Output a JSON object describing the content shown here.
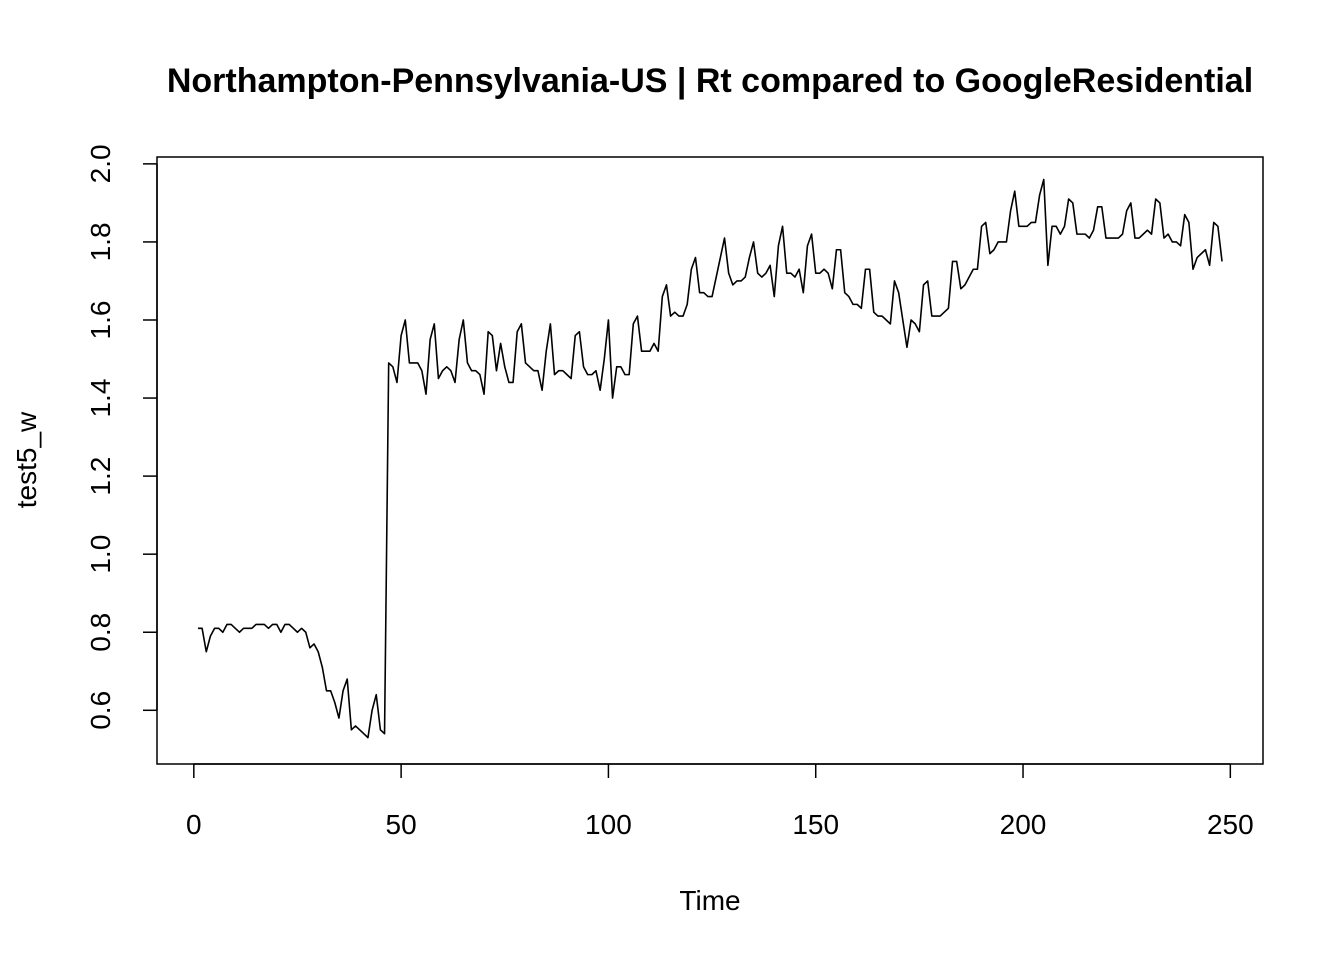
{
  "chart_data": {
    "type": "line",
    "title": "Northampton-Pennsylvania-US | Rt compared to GoogleResidential",
    "xlabel": "Time",
    "ylabel": "test5_w",
    "xlim": [
      1,
      248
    ],
    "ylim": [
      0.52,
      1.96
    ],
    "xticks": [
      0,
      50,
      100,
      150,
      200,
      250
    ],
    "xtick_labels": [
      "0",
      "50",
      "100",
      "150",
      "200",
      "250"
    ],
    "yticks": [
      0.6,
      0.8,
      1.0,
      1.2,
      1.4,
      1.6,
      1.8,
      2.0
    ],
    "ytick_labels": [
      "0.6",
      "0.8",
      "1.0",
      "1.2",
      "1.4",
      "1.6",
      "1.8",
      "2.0"
    ],
    "grid": false,
    "series": [
      {
        "color": "#000000",
        "x_start": 1,
        "values": [
          0.81,
          0.81,
          0.75,
          0.79,
          0.81,
          0.81,
          0.8,
          0.82,
          0.82,
          0.81,
          0.8,
          0.81,
          0.81,
          0.81,
          0.82,
          0.82,
          0.82,
          0.81,
          0.82,
          0.82,
          0.8,
          0.82,
          0.82,
          0.81,
          0.8,
          0.81,
          0.8,
          0.76,
          0.77,
          0.75,
          0.71,
          0.65,
          0.65,
          0.62,
          0.58,
          0.65,
          0.68,
          0.55,
          0.56,
          0.55,
          0.54,
          0.53,
          0.6,
          0.64,
          0.55,
          0.54,
          1.49,
          1.48,
          1.44,
          1.56,
          1.6,
          1.49,
          1.49,
          1.49,
          1.47,
          1.41,
          1.55,
          1.59,
          1.45,
          1.47,
          1.48,
          1.47,
          1.44,
          1.55,
          1.6,
          1.49,
          1.47,
          1.47,
          1.46,
          1.41,
          1.57,
          1.56,
          1.47,
          1.54,
          1.48,
          1.44,
          1.44,
          1.57,
          1.59,
          1.49,
          1.48,
          1.47,
          1.47,
          1.42,
          1.52,
          1.59,
          1.46,
          1.47,
          1.47,
          1.46,
          1.45,
          1.56,
          1.57,
          1.48,
          1.46,
          1.46,
          1.47,
          1.42,
          1.5,
          1.6,
          1.4,
          1.48,
          1.48,
          1.46,
          1.46,
          1.59,
          1.61,
          1.52,
          1.52,
          1.52,
          1.54,
          1.52,
          1.66,
          1.69,
          1.61,
          1.62,
          1.61,
          1.61,
          1.64,
          1.73,
          1.76,
          1.67,
          1.67,
          1.66,
          1.66,
          1.71,
          1.76,
          1.81,
          1.72,
          1.69,
          1.7,
          1.7,
          1.71,
          1.76,
          1.8,
          1.72,
          1.71,
          1.72,
          1.74,
          1.66,
          1.79,
          1.84,
          1.72,
          1.72,
          1.71,
          1.73,
          1.67,
          1.79,
          1.82,
          1.72,
          1.72,
          1.73,
          1.72,
          1.68,
          1.78,
          1.78,
          1.67,
          1.66,
          1.64,
          1.64,
          1.63,
          1.73,
          1.73,
          1.62,
          1.61,
          1.61,
          1.6,
          1.59,
          1.7,
          1.67,
          1.6,
          1.53,
          1.6,
          1.59,
          1.57,
          1.69,
          1.7,
          1.61,
          1.61,
          1.61,
          1.62,
          1.63,
          1.75,
          1.75,
          1.68,
          1.69,
          1.71,
          1.73,
          1.73,
          1.84,
          1.85,
          1.77,
          1.78,
          1.8,
          1.8,
          1.8,
          1.88,
          1.93,
          1.84,
          1.84,
          1.84,
          1.85,
          1.85,
          1.92,
          1.96,
          1.74,
          1.84,
          1.84,
          1.82,
          1.84,
          1.91,
          1.9,
          1.82,
          1.82,
          1.82,
          1.81,
          1.83,
          1.89,
          1.89,
          1.81,
          1.81,
          1.81,
          1.81,
          1.82,
          1.88,
          1.9,
          1.81,
          1.81,
          1.82,
          1.83,
          1.82,
          1.91,
          1.9,
          1.81,
          1.82,
          1.8,
          1.8,
          1.79,
          1.87,
          1.85,
          1.73,
          1.76,
          1.77,
          1.78,
          1.74,
          1.85,
          1.84,
          1.75
        ]
      }
    ]
  }
}
